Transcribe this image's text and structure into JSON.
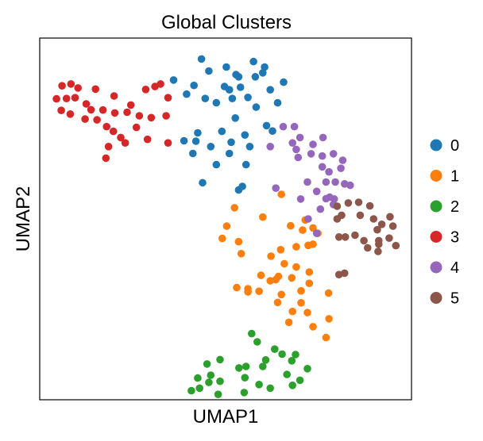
{
  "chart_data": {
    "type": "scatter",
    "title": "Global Clusters",
    "xlabel": "UMAP1",
    "ylabel": "UMAP2",
    "xlim": [
      0,
      10
    ],
    "ylim": [
      0,
      10
    ],
    "grid": false,
    "show_ticks": false,
    "legend_position": "right",
    "series": [
      {
        "name": "0",
        "color": "#1f77b4",
        "points": [
          [
            4.35,
            9.42
          ],
          [
            3.6,
            8.84
          ],
          [
            4.55,
            9.09
          ],
          [
            5.02,
            9.2
          ],
          [
            4.97,
            8.66
          ],
          [
            5.28,
            8.99
          ],
          [
            4.15,
            8.69
          ],
          [
            3.95,
            8.45
          ],
          [
            4.45,
            8.33
          ],
          [
            4.75,
            8.21
          ],
          [
            5.1,
            8.57
          ],
          [
            5.35,
            8.93
          ],
          [
            5.75,
            9.35
          ],
          [
            6.05,
            9.2
          ],
          [
            5.8,
            8.93
          ],
          [
            5.4,
            8.64
          ],
          [
            5.6,
            8.36
          ],
          [
            5.18,
            8.33
          ],
          [
            5.82,
            8.09
          ],
          [
            6.2,
            8.57
          ],
          [
            6.56,
            8.78
          ],
          [
            6.4,
            8.21
          ],
          [
            6.0,
            9.04
          ],
          [
            5.26,
            7.79
          ],
          [
            6.1,
            7.58
          ],
          [
            6.26,
            7.43
          ],
          [
            4.25,
            7.38
          ],
          [
            4.9,
            7.42
          ],
          [
            5.15,
            7.12
          ],
          [
            3.88,
            7.16
          ],
          [
            4.2,
            7.15
          ],
          [
            4.12,
            6.81
          ],
          [
            4.6,
            7.0
          ],
          [
            5.52,
            7.32
          ],
          [
            5.65,
            7.0
          ],
          [
            4.75,
            6.5
          ],
          [
            5.1,
            6.81
          ],
          [
            5.55,
            6.5
          ],
          [
            4.38,
            6.0
          ],
          [
            5.35,
            5.8
          ],
          [
            5.45,
            5.9
          ]
        ]
      },
      {
        "name": "1",
        "color": "#ff7f0e",
        "points": [
          [
            5.24,
            5.31
          ],
          [
            5.03,
            4.8
          ],
          [
            4.91,
            4.46
          ],
          [
            5.35,
            4.37
          ],
          [
            5.42,
            4.04
          ],
          [
            6.0,
            5.05
          ],
          [
            6.5,
            5.68
          ],
          [
            6.75,
            4.81
          ],
          [
            7.07,
            4.69
          ],
          [
            7.22,
            4.27
          ],
          [
            6.48,
            4.15
          ],
          [
            6.22,
            3.97
          ],
          [
            6.58,
            3.76
          ],
          [
            6.42,
            3.41
          ],
          [
            6.9,
            3.67
          ],
          [
            6.78,
            3.37
          ],
          [
            7.03,
            3.01
          ],
          [
            7.25,
            3.53
          ],
          [
            6.2,
            3.29
          ],
          [
            5.95,
            3.44
          ],
          [
            5.6,
            3.07
          ],
          [
            5.3,
            3.1
          ],
          [
            6.5,
            2.91
          ],
          [
            7.03,
            2.68
          ],
          [
            7.25,
            3.22
          ],
          [
            6.8,
            2.44
          ],
          [
            6.7,
            2.14
          ],
          [
            7.77,
            2.95
          ],
          [
            7.35,
            4.3
          ],
          [
            7.35,
            4.75
          ],
          [
            7.14,
            4.97
          ],
          [
            7.48,
            4.6
          ],
          [
            6.9,
            4.23
          ],
          [
            7.78,
            2.24
          ],
          [
            7.35,
            2.02
          ],
          [
            7.2,
            2.41
          ],
          [
            7.7,
            1.72
          ],
          [
            6.4,
            2.69
          ],
          [
            5.6,
            2.98
          ],
          [
            5.9,
            3.0
          ],
          [
            6.35,
            3.32
          ]
        ]
      },
      {
        "name": "2",
        "color": "#2ca02c",
        "points": [
          [
            5.7,
            1.83
          ],
          [
            5.85,
            1.6
          ],
          [
            6.32,
            1.4
          ],
          [
            6.52,
            1.26
          ],
          [
            5.55,
            0.92
          ],
          [
            6.0,
            0.92
          ],
          [
            6.08,
            1.1
          ],
          [
            6.78,
            1.08
          ],
          [
            6.88,
            1.25
          ],
          [
            7.2,
            0.86
          ],
          [
            6.65,
            0.7
          ],
          [
            7.0,
            0.54
          ],
          [
            6.8,
            0.4
          ],
          [
            5.9,
            0.42
          ],
          [
            6.2,
            0.32
          ],
          [
            5.52,
            0.61
          ],
          [
            5.36,
            0.88
          ],
          [
            4.85,
            1.11
          ],
          [
            4.6,
            0.68
          ],
          [
            4.85,
            0.51
          ],
          [
            4.55,
            0.48
          ],
          [
            4.3,
            0.32
          ],
          [
            4.08,
            0.25
          ],
          [
            4.25,
            0.6
          ],
          [
            4.5,
            0.99
          ],
          [
            4.8,
            0.15
          ],
          [
            5.5,
            0.2
          ]
        ]
      },
      {
        "name": "3",
        "color": "#d62728",
        "points": [
          [
            0.6,
            8.68
          ],
          [
            0.84,
            8.73
          ],
          [
            1.03,
            8.62
          ],
          [
            1.5,
            8.59
          ],
          [
            0.45,
            8.32
          ],
          [
            0.72,
            8.33
          ],
          [
            0.95,
            8.35
          ],
          [
            0.58,
            8.0
          ],
          [
            0.82,
            7.9
          ],
          [
            1.22,
            7.76
          ],
          [
            1.54,
            7.74
          ],
          [
            1.38,
            8.02
          ],
          [
            1.7,
            8.01
          ],
          [
            2.02,
            7.93
          ],
          [
            2.35,
            7.95
          ],
          [
            2.68,
            7.85
          ],
          [
            2.85,
            8.58
          ],
          [
            3.1,
            8.66
          ],
          [
            3.25,
            8.73
          ],
          [
            3.45,
            8.35
          ],
          [
            2.45,
            8.15
          ],
          [
            2.0,
            8.4
          ],
          [
            1.25,
            8.18
          ],
          [
            1.8,
            7.55
          ],
          [
            1.98,
            7.42
          ],
          [
            2.18,
            7.25
          ],
          [
            2.6,
            7.53
          ],
          [
            2.9,
            7.2
          ],
          [
            3.45,
            7.1
          ],
          [
            2.3,
            7.1
          ],
          [
            1.85,
            7.0
          ],
          [
            1.78,
            6.68
          ],
          [
            3.0,
            7.8
          ],
          [
            3.4,
            7.85
          ]
        ]
      },
      {
        "name": "4",
        "color": "#9467bd",
        "points": [
          [
            6.55,
            7.55
          ],
          [
            6.85,
            7.55
          ],
          [
            7.0,
            7.25
          ],
          [
            6.2,
            7.0
          ],
          [
            6.8,
            7.1
          ],
          [
            7.35,
            7.06
          ],
          [
            7.6,
            6.74
          ],
          [
            7.62,
            7.25
          ],
          [
            7.9,
            6.8
          ],
          [
            8.15,
            6.62
          ],
          [
            7.6,
            6.44
          ],
          [
            7.95,
            6.02
          ],
          [
            8.2,
            5.97
          ],
          [
            8.35,
            5.93
          ],
          [
            7.2,
            6.02
          ],
          [
            7.45,
            5.76
          ],
          [
            7.7,
            5.56
          ],
          [
            7.92,
            5.55
          ],
          [
            7.55,
            5.27
          ],
          [
            7.22,
            5.0
          ],
          [
            7.8,
            5.6
          ],
          [
            6.35,
            5.85
          ],
          [
            7.02,
            5.55
          ],
          [
            7.45,
            4.6
          ],
          [
            7.9,
            5.4
          ],
          [
            8.1,
            6.4
          ],
          [
            7.3,
            6.8
          ],
          [
            7.78,
            6.3
          ],
          [
            6.9,
            6.92
          ],
          [
            6.95,
            6.7
          ],
          [
            7.7,
            6.02
          ]
        ]
      },
      {
        "name": "5",
        "color": "#8c564b",
        "points": [
          [
            8.0,
            5.35
          ],
          [
            8.3,
            5.44
          ],
          [
            8.58,
            5.46
          ],
          [
            8.88,
            5.36
          ],
          [
            8.12,
            5.1
          ],
          [
            8.62,
            5.1
          ],
          [
            8.98,
            5.0
          ],
          [
            9.2,
            4.85
          ],
          [
            9.42,
            5.06
          ],
          [
            9.5,
            4.8
          ],
          [
            9.08,
            4.7
          ],
          [
            8.48,
            4.55
          ],
          [
            8.22,
            4.5
          ],
          [
            8.05,
            4.5
          ],
          [
            8.72,
            4.4
          ],
          [
            9.12,
            4.3
          ],
          [
            9.4,
            4.47
          ],
          [
            9.58,
            4.26
          ],
          [
            9.1,
            4.1
          ],
          [
            8.82,
            4.2
          ],
          [
            8.2,
            3.5
          ],
          [
            8.05,
            3.46
          ],
          [
            9.12,
            4.4
          ],
          [
            8.0,
            5.0
          ]
        ]
      }
    ]
  }
}
